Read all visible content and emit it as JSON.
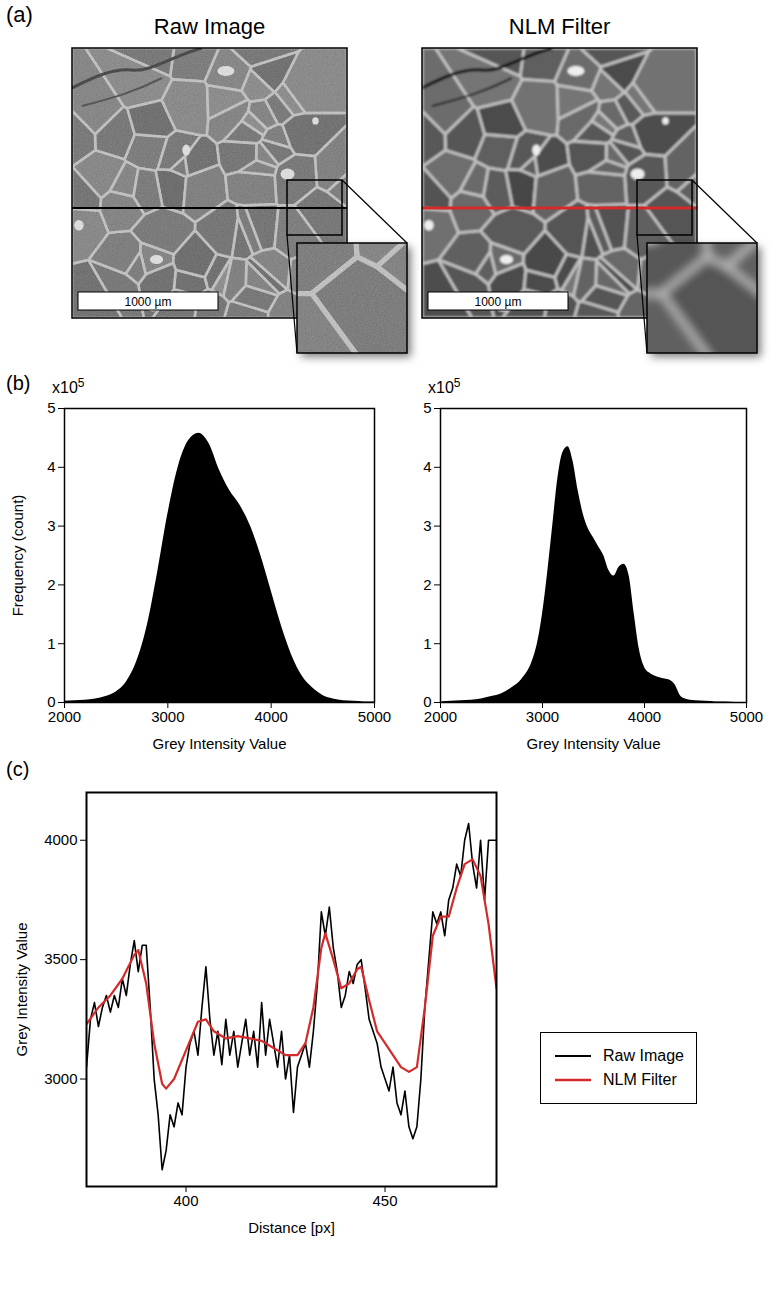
{
  "panel_a": {
    "label": "(a)",
    "images": [
      {
        "title": "Raw Image",
        "scale_bar": "1000 µm",
        "profile_line_color": "#000000"
      },
      {
        "title": "NLM Filter",
        "scale_bar": "1000 µm",
        "profile_line_color": "#d42a2a"
      }
    ]
  },
  "chart_data": [
    {
      "panel": "(b)",
      "type": "area",
      "color": "#000000",
      "x_label": "Grey Intensity Value",
      "y_label": "Frequency (count)",
      "y_multiplier": {
        "text": "x10",
        "exponent": "5"
      },
      "x": [
        2000,
        2100,
        2200,
        2300,
        2400,
        2500,
        2600,
        2700,
        2800,
        2900,
        3000,
        3100,
        3200,
        3300,
        3400,
        3500,
        3600,
        3700,
        3800,
        3900,
        4000,
        4100,
        4200,
        4300,
        4400,
        4500,
        4600,
        4700,
        4800,
        4900,
        5000
      ],
      "values": [
        0.02,
        0.03,
        0.04,
        0.06,
        0.1,
        0.18,
        0.35,
        0.7,
        1.3,
        2.2,
        3.2,
        4.0,
        4.45,
        4.58,
        4.4,
        3.95,
        3.6,
        3.35,
        3.0,
        2.5,
        1.9,
        1.3,
        0.8,
        0.45,
        0.25,
        0.12,
        0.06,
        0.03,
        0.02,
        0.01,
        0.01
      ],
      "xlim": [
        2000,
        5000
      ],
      "xticks": [
        2000,
        3000,
        4000,
        5000
      ],
      "ylim": [
        0,
        5
      ],
      "yticks": [
        0,
        1,
        2,
        3,
        4,
        5
      ]
    },
    {
      "type": "area",
      "color": "#000000",
      "x_label": "Grey Intensity Value",
      "y_multiplier": {
        "text": "x10",
        "exponent": "5"
      },
      "x": [
        2000,
        2100,
        2200,
        2300,
        2400,
        2500,
        2600,
        2700,
        2800,
        2900,
        2950,
        3000,
        3050,
        3100,
        3150,
        3200,
        3250,
        3300,
        3350,
        3400,
        3450,
        3500,
        3550,
        3600,
        3650,
        3700,
        3750,
        3800,
        3850,
        3900,
        3950,
        4000,
        4050,
        4100,
        4150,
        4200,
        4250,
        4300,
        4350,
        4400,
        4500,
        4600,
        4700,
        4800,
        4900,
        5000
      ],
      "values": [
        0.01,
        0.02,
        0.03,
        0.04,
        0.06,
        0.1,
        0.15,
        0.25,
        0.4,
        0.7,
        1.0,
        1.5,
        2.2,
        3.0,
        3.8,
        4.25,
        4.35,
        4.1,
        3.6,
        3.2,
        2.95,
        2.8,
        2.65,
        2.5,
        2.25,
        2.15,
        2.3,
        2.35,
        2.15,
        1.5,
        0.9,
        0.6,
        0.5,
        0.45,
        0.42,
        0.4,
        0.38,
        0.3,
        0.12,
        0.06,
        0.03,
        0.02,
        0.01,
        0.01,
        0.0,
        0.0
      ],
      "xlim": [
        2000,
        5000
      ],
      "xticks": [
        2000,
        3000,
        4000,
        5000
      ],
      "ylim": [
        0,
        5
      ],
      "yticks": [
        0,
        1,
        2,
        3,
        4,
        5
      ]
    },
    {
      "panel": "(c)",
      "type": "line",
      "legend": "right",
      "x_label": "Distance [px]",
      "y_label": "Grey Intensity Value",
      "xlim": [
        375,
        478
      ],
      "xticks": [
        400,
        450
      ],
      "ylim": [
        2550,
        4200
      ],
      "yticks": [
        3000,
        3500,
        4000
      ],
      "series": [
        {
          "name": "Raw Image",
          "color": "#000000",
          "x": [
            375,
            376,
            377,
            378,
            379,
            380,
            381,
            382,
            383,
            384,
            385,
            386,
            387,
            388,
            389,
            390,
            391,
            392,
            393,
            394,
            395,
            396,
            397,
            398,
            399,
            400,
            401,
            402,
            403,
            404,
            405,
            406,
            407,
            408,
            409,
            410,
            411,
            412,
            413,
            414,
            415,
            416,
            417,
            418,
            419,
            420,
            421,
            422,
            423,
            424,
            425,
            426,
            427,
            428,
            429,
            430,
            431,
            432,
            433,
            434,
            435,
            436,
            437,
            438,
            439,
            440,
            441,
            442,
            443,
            444,
            445,
            446,
            447,
            448,
            449,
            450,
            451,
            452,
            453,
            454,
            455,
            456,
            457,
            458,
            459,
            460,
            461,
            462,
            463,
            464,
            465,
            466,
            467,
            468,
            469,
            470,
            471,
            472,
            473,
            474,
            475,
            476,
            477,
            478
          ],
          "values": [
            3050,
            3250,
            3320,
            3220,
            3300,
            3350,
            3280,
            3350,
            3300,
            3420,
            3350,
            3480,
            3580,
            3450,
            3560,
            3560,
            3300,
            3000,
            2850,
            2620,
            2700,
            2850,
            2800,
            2900,
            2850,
            3050,
            3150,
            3200,
            3100,
            3300,
            3470,
            3250,
            3100,
            3200,
            3060,
            3250,
            3100,
            3200,
            3050,
            3150,
            3250,
            3100,
            3200,
            3050,
            3320,
            3100,
            3250,
            3150,
            3050,
            3200,
            3000,
            3100,
            2860,
            3050,
            3100,
            3150,
            3050,
            3200,
            3400,
            3700,
            3600,
            3720,
            3550,
            3450,
            3300,
            3350,
            3450,
            3400,
            3480,
            3500,
            3380,
            3250,
            3200,
            3150,
            3050,
            3000,
            2950,
            3050,
            2900,
            2850,
            2950,
            2800,
            2750,
            2800,
            3000,
            3300,
            3500,
            3700,
            3650,
            3700,
            3600,
            3750,
            3800,
            3900,
            3850,
            4000,
            4070,
            3900,
            3800,
            4000,
            3750,
            4000,
            4000,
            4000
          ]
        },
        {
          "name": "NLM Filter",
          "color": "#d42a2a",
          "x": [
            375,
            378,
            381,
            384,
            387,
            388,
            390,
            392,
            394,
            395,
            397,
            400,
            403,
            405,
            407,
            410,
            413,
            416,
            419,
            422,
            425,
            428,
            430,
            432,
            434,
            435,
            437,
            439,
            441,
            443,
            444,
            446,
            448,
            450,
            452,
            454,
            456,
            458,
            460,
            462,
            464,
            466,
            468,
            470,
            472,
            474,
            476,
            478
          ],
          "values": [
            3230,
            3300,
            3350,
            3420,
            3520,
            3540,
            3400,
            3150,
            2980,
            2960,
            3000,
            3120,
            3240,
            3250,
            3200,
            3170,
            3180,
            3170,
            3160,
            3130,
            3100,
            3100,
            3150,
            3300,
            3550,
            3610,
            3500,
            3380,
            3400,
            3460,
            3470,
            3330,
            3200,
            3150,
            3100,
            3050,
            3030,
            3050,
            3300,
            3600,
            3680,
            3680,
            3800,
            3900,
            3920,
            3850,
            3650,
            3380
          ]
        }
      ]
    }
  ]
}
